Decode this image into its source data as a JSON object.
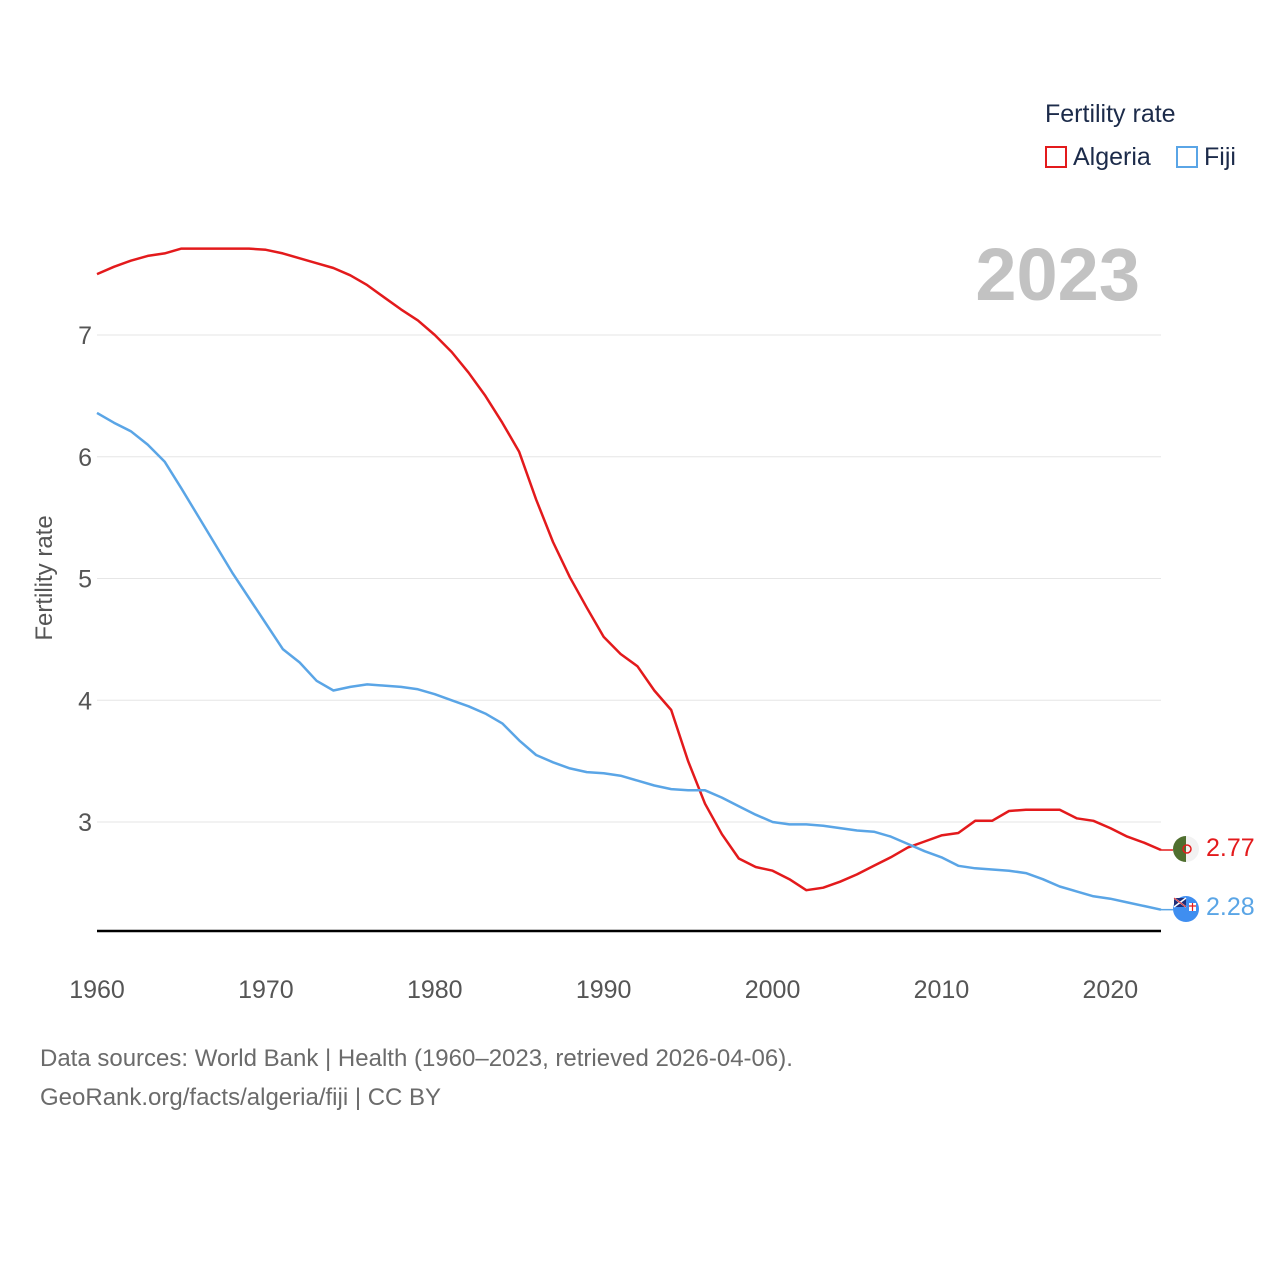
{
  "chart_data": {
    "type": "line",
    "year_label": "2023",
    "ylabel": "Fertility rate",
    "xlabel": "",
    "xlim": [
      1960,
      2023
    ],
    "ylim": [
      2.1,
      7.8
    ],
    "x_ticks": [
      1960,
      1970,
      1980,
      1990,
      2000,
      2010,
      2020
    ],
    "y_ticks": [
      3,
      4,
      5,
      6,
      7
    ],
    "legend": {
      "title": "Fertility rate",
      "position": "top-right"
    },
    "x": [
      1960,
      1961,
      1962,
      1963,
      1964,
      1965,
      1966,
      1967,
      1968,
      1969,
      1970,
      1971,
      1972,
      1973,
      1974,
      1975,
      1976,
      1977,
      1978,
      1979,
      1980,
      1981,
      1982,
      1983,
      1984,
      1985,
      1986,
      1987,
      1988,
      1989,
      1990,
      1991,
      1992,
      1993,
      1994,
      1995,
      1996,
      1997,
      1998,
      1999,
      2000,
      2001,
      2002,
      2003,
      2004,
      2005,
      2006,
      2007,
      2008,
      2009,
      2010,
      2011,
      2012,
      2013,
      2014,
      2015,
      2016,
      2017,
      2018,
      2019,
      2020,
      2021,
      2022,
      2023
    ],
    "series": [
      {
        "name": "Algeria",
        "color": "#e31a1c",
        "end_label": "2.77",
        "values": [
          7.5,
          7.56,
          7.61,
          7.65,
          7.67,
          7.71,
          7.71,
          7.71,
          7.71,
          7.71,
          7.7,
          7.67,
          7.63,
          7.59,
          7.55,
          7.49,
          7.41,
          7.31,
          7.21,
          7.12,
          7.0,
          6.86,
          6.69,
          6.5,
          6.28,
          6.04,
          5.65,
          5.3,
          5.01,
          4.76,
          4.52,
          4.38,
          4.28,
          4.08,
          3.92,
          3.5,
          3.15,
          2.9,
          2.7,
          2.63,
          2.6,
          2.53,
          2.44,
          2.46,
          2.51,
          2.57,
          2.64,
          2.71,
          2.79,
          2.84,
          2.89,
          2.91,
          3.01,
          3.01,
          3.09,
          3.1,
          3.1,
          3.1,
          3.03,
          3.01,
          2.95,
          2.88,
          2.83,
          2.77
        ]
      },
      {
        "name": "Fiji",
        "color": "#5aa5e6",
        "end_label": "2.28",
        "values": [
          6.36,
          6.28,
          6.21,
          6.1,
          5.96,
          5.74,
          5.51,
          5.28,
          5.05,
          4.84,
          4.63,
          4.42,
          4.31,
          4.16,
          4.08,
          4.11,
          4.13,
          4.12,
          4.11,
          4.09,
          4.05,
          4.0,
          3.95,
          3.89,
          3.81,
          3.67,
          3.55,
          3.49,
          3.44,
          3.41,
          3.4,
          3.38,
          3.34,
          3.3,
          3.27,
          3.26,
          3.26,
          3.2,
          3.13,
          3.06,
          3.0,
          2.98,
          2.98,
          2.97,
          2.95,
          2.93,
          2.92,
          2.88,
          2.82,
          2.76,
          2.71,
          2.64,
          2.62,
          2.61,
          2.6,
          2.58,
          2.53,
          2.47,
          2.43,
          2.39,
          2.37,
          2.34,
          2.31,
          2.28
        ]
      }
    ]
  },
  "source": {
    "line1": "Data sources: World Bank | Health (1960–2023, retrieved 2026-04-06).",
    "line2": "GeoRank.org/facts/algeria/fiji | CC BY"
  }
}
